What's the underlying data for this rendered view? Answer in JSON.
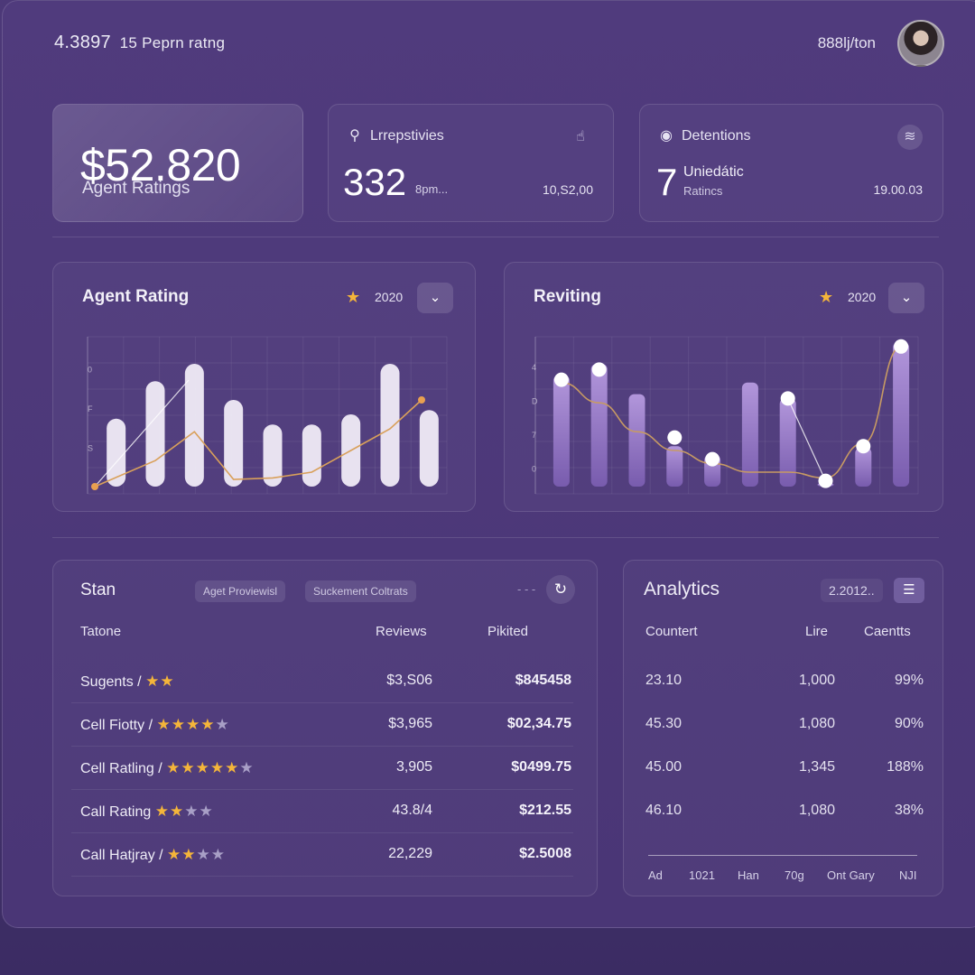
{
  "header": {
    "title_number": "4.3897",
    "title_text": "15 Peprn ratng",
    "right_text": "888lj/ton"
  },
  "kpi_main": {
    "value": "$52.820",
    "label": "Agent Ratings"
  },
  "kpi_1": {
    "icon": "pin-icon",
    "title": "Lrrepstivies",
    "value": "332",
    "unit": "8pm...",
    "side_value": "10,S2,00"
  },
  "kpi_2": {
    "icon": "settings-circle-icon",
    "title": "Detentions",
    "value": "7",
    "sub_title": "Uniedátic",
    "sub_label": "Ratincs",
    "side_value": "19.00.03"
  },
  "chart_1": {
    "title": "Agent Rating",
    "year": "2020",
    "y_ticks": [
      "0",
      "F",
      "S"
    ]
  },
  "chart_2": {
    "title": "Reviting",
    "year": "2020",
    "y_ticks": [
      "4",
      "D",
      "7",
      "0"
    ]
  },
  "chart_data": [
    {
      "type": "bar",
      "title": "Agent Rating",
      "values": [
        0.47,
        0.73,
        0.85,
        0.6,
        0.43,
        0.43,
        0.5,
        0.85,
        0.53
      ],
      "line": [
        0,
        0.18,
        0.38,
        0.05,
        0.06,
        0.1,
        0.25,
        0.4,
        0.6
      ],
      "colors": {
        "bar": "#f3eff9",
        "line": "#d9a05a",
        "marker_end": "#e8a050"
      }
    },
    {
      "type": "bar",
      "title": "Reviting",
      "values": [
        0.77,
        0.85,
        0.64,
        0.28,
        0.22,
        0.72,
        0.61,
        0.02,
        0.27,
        1.0
      ],
      "dots": [
        0.74,
        0.81,
        null,
        0.34,
        0.19,
        null,
        0.61,
        0.04,
        0.28,
        0.97
      ],
      "line": [
        0.72,
        0.58,
        0.38,
        0.25,
        0.16,
        0.1,
        0.1,
        0.06,
        0.3,
        0.97
      ],
      "colors": {
        "bar": "#9f82cf",
        "line": "#c79a63",
        "dot": "#ffffff"
      }
    }
  ],
  "table": {
    "title": "Stan",
    "chips": [
      "Aget Proviewisl",
      "Suckement Coltrats"
    ],
    "dash": "- - -",
    "headers": [
      "Tatone",
      "Reviews",
      "Pikited"
    ],
    "rows": [
      {
        "name": "Sugents",
        "sep": "/",
        "stars": "★★",
        "stars_dim": "",
        "reviews": "$3,S06",
        "value": "$845458"
      },
      {
        "name": "Cell Fiotty",
        "sep": "/",
        "stars": "★★★★",
        "stars_dim": "★",
        "reviews": "$3,965",
        "value": "$02,34.75"
      },
      {
        "name": "Cell Ratling",
        "sep": "/",
        "stars": "★★★★★",
        "stars_dim": "★",
        "reviews": "3,905",
        "value": "$0499.75"
      },
      {
        "name": "Call Rating",
        "sep": "",
        "stars": "★★",
        "stars_dim": "★★",
        "reviews": "43.8/4",
        "value": "$212.55"
      },
      {
        "name": "Call Hatjray",
        "sep": "/",
        "stars": "★★",
        "stars_dim": "★★",
        "reviews": "22,229",
        "value": "$2.5008"
      }
    ]
  },
  "analytics": {
    "title": "Analytics",
    "chip": "2.2012..",
    "headers": [
      "Countert",
      "Lire",
      "Caentts"
    ],
    "rows": [
      [
        "23.10",
        "1,000",
        "99%"
      ],
      [
        "45.30",
        "1,080",
        "90%"
      ],
      [
        "45.00",
        "1,345",
        "188%"
      ],
      [
        "46.10",
        "1,080",
        "38%"
      ]
    ],
    "footer": [
      "Ad",
      "1021",
      "Han",
      "70g",
      "Ont Gary",
      "NJI"
    ]
  }
}
